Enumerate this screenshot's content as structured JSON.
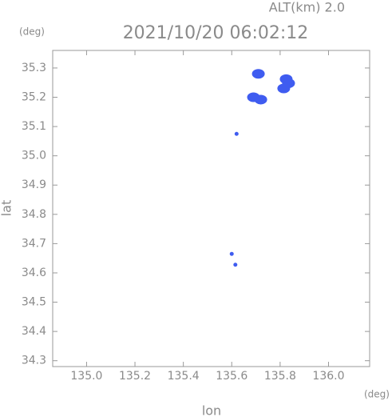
{
  "chart_data": {
    "type": "scatter",
    "title": "2021/10/20 06:02:12",
    "subtitle": "ALT(km) 2.0",
    "x_label": "lon",
    "y_label": "lat",
    "x_unit": "(deg)",
    "y_unit": "(deg)",
    "color": "#3f5cf0",
    "x": [
      135.71,
      135.69,
      135.72,
      135.825,
      135.835,
      135.815,
      135.62,
      135.615,
      135.6
    ],
    "values": [
      35.28,
      35.2,
      35.192,
      35.262,
      35.248,
      35.23,
      35.075,
      34.628,
      34.665
    ],
    "xlim": [
      134.86,
      136.17
    ],
    "ylim": [
      34.28,
      35.36
    ],
    "xticks": [
      {
        "value": 135,
        "label": "135.0"
      },
      135.2,
      135.4,
      135.6,
      135.8,
      {
        "value": 136,
        "label": "136.0"
      }
    ],
    "yticks": [
      34.3,
      34.4,
      34.5,
      34.6,
      34.7,
      34.8,
      34.9,
      {
        "value": 35,
        "label": "35.0"
      },
      35.1,
      35.2,
      35.3
    ]
  }
}
